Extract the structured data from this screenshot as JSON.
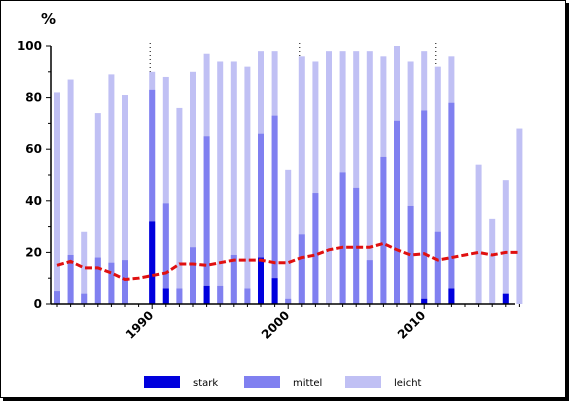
{
  "chart_data": {
    "type": "bar",
    "y_unit_label": "%",
    "ylim": [
      0,
      100
    ],
    "y_ticks": [
      0,
      20,
      40,
      60,
      80,
      100
    ],
    "x_tick_labels": [
      {
        "year": 1990,
        "label": "1990"
      },
      {
        "year": 2000,
        "label": "2000"
      },
      {
        "year": 2010,
        "label": "2010"
      }
    ],
    "dotted_markers": [
      1990,
      2001,
      2011
    ],
    "years": [
      1983,
      1984,
      1985,
      1986,
      1987,
      1988,
      1989,
      1990,
      1991,
      1992,
      1993,
      1994,
      1995,
      1996,
      1997,
      1998,
      1999,
      2000,
      2001,
      2002,
      2003,
      2004,
      2005,
      2006,
      2007,
      2008,
      2009,
      2010,
      2011,
      2012,
      2013,
      2014,
      2015,
      2016,
      2017
    ],
    "series": [
      {
        "name": "stark",
        "color": "#0000dd",
        "values": [
          0,
          0,
          0,
          0,
          0,
          0,
          0,
          32,
          6,
          0,
          0,
          7,
          0,
          0,
          0,
          18,
          10,
          0,
          0,
          0,
          0,
          0,
          0,
          0,
          0,
          0,
          0,
          2,
          0,
          6,
          null,
          0,
          0,
          4,
          0
        ]
      },
      {
        "name": "mittel",
        "color": "#8080f0",
        "values": [
          5,
          19,
          4,
          18,
          16,
          17,
          0,
          83,
          39,
          6,
          22,
          65,
          7,
          19,
          6,
          66,
          73,
          2,
          27,
          43,
          0,
          51,
          45,
          17,
          57,
          71,
          38,
          75,
          28,
          78,
          null,
          0,
          0,
          0,
          0
        ]
      },
      {
        "name": "leicht",
        "color": "#c0c0f4",
        "values": [
          82,
          87,
          28,
          74,
          89,
          81,
          0,
          90,
          88,
          76,
          90,
          97,
          94,
          94,
          92,
          98,
          98,
          52,
          96,
          94,
          98,
          98,
          98,
          98,
          96,
          100,
          94,
          98,
          92,
          96,
          null,
          54,
          33,
          48,
          68
        ]
      }
    ],
    "line": {
      "color": "#e01010",
      "style": "dashed",
      "values": [
        15,
        16.5,
        14,
        14,
        12,
        9.5,
        10,
        11,
        12,
        15.5,
        15.5,
        15,
        16,
        17,
        17,
        17,
        16,
        16,
        18,
        19,
        21,
        22,
        22,
        22,
        23.5,
        21,
        19,
        19.5,
        17,
        18,
        19,
        20,
        19,
        20,
        20
      ]
    },
    "legend": [
      {
        "label": "stark",
        "color": "#0000dd"
      },
      {
        "label": "mittel",
        "color": "#8080f0"
      },
      {
        "label": "leicht",
        "color": "#c0c0f4"
      }
    ]
  }
}
